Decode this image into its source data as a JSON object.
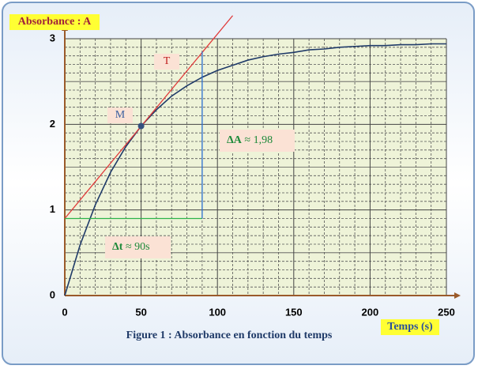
{
  "chart_data": {
    "type": "line",
    "y_label": "Absorbance : A",
    "x_label": "Temps (s)",
    "caption": "Figure 1 : Absorbance en fonction du temps",
    "xlim": [
      0,
      250
    ],
    "xticks": [
      0,
      50,
      100,
      150,
      200,
      250
    ],
    "ylim": [
      0,
      3
    ],
    "yticks": [
      0,
      1,
      2,
      3
    ],
    "grid": true,
    "legend": false,
    "series": [
      {
        "x": [
          0,
          10,
          20,
          30,
          40,
          50,
          60,
          70,
          80,
          90,
          100,
          110,
          120,
          130,
          140,
          150,
          160,
          170,
          180,
          190,
          200,
          210,
          220,
          230,
          240,
          250
        ],
        "values": [
          0,
          0.59,
          1.06,
          1.44,
          1.74,
          1.98,
          2.17,
          2.33,
          2.45,
          2.55,
          2.63,
          2.69,
          2.75,
          2.79,
          2.82,
          2.84,
          2.87,
          2.88,
          2.9,
          2.91,
          2.92,
          2.92,
          2.93,
          2.93,
          2.94,
          2.94
        ],
        "color": "#1f3a68"
      },
      {
        "name": "T",
        "x": [
          0,
          110
        ],
        "values": [
          0.9,
          3.27
        ],
        "color": "#e03a3a"
      },
      {
        "x": [
          0,
          90
        ],
        "values": [
          0.9,
          0.9
        ],
        "color": "#2db34a"
      },
      {
        "x": [
          90,
          90
        ],
        "values": [
          0.9,
          2.85
        ],
        "color": "#2a6fd0"
      }
    ],
    "point": {
      "name": "M",
      "x": 50,
      "value": 1.98,
      "color": "#34507f"
    },
    "annotations": {
      "delta_A": {
        "symbol": "ΔA",
        "text": "≈ 1,98"
      },
      "delta_t": {
        "symbol": "Δt",
        "text": "≈ 90s"
      }
    }
  }
}
